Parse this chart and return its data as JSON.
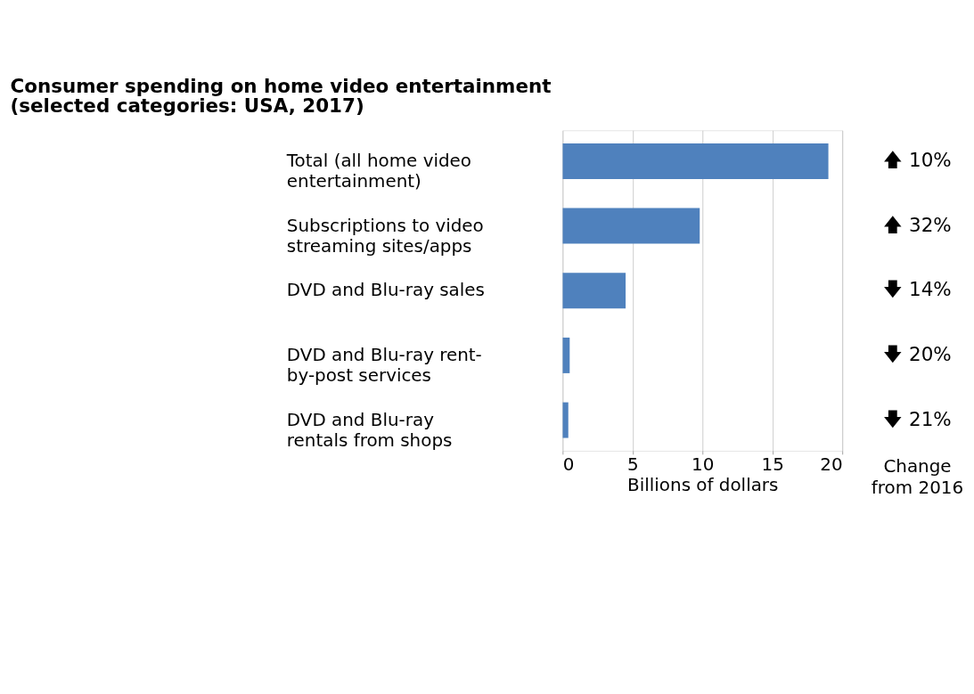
{
  "chart_data": {
    "type": "bar",
    "orientation": "horizontal",
    "title": [
      "Consumer spending on home video entertainment",
      "(selected categories: USA, 2017)"
    ],
    "categories": [
      "Total (all home video entertainment)",
      "Subscriptions to video streaming sites/apps",
      "DVD and Blu-ray sales",
      "DVD and Blu-ray rent-by-post services",
      "DVD and Blu-ray rentals from shops"
    ],
    "values": [
      19.0,
      9.8,
      4.5,
      0.5,
      0.4
    ],
    "color": "#4f81bd",
    "xlim": [
      0,
      20
    ],
    "xticks": [
      0,
      5,
      10,
      15,
      20
    ],
    "xlabel": "Billions of dollars",
    "grid": "x",
    "annotations": [
      "🡅 10%",
      "🡅 32%",
      "🡇 14%",
      "🡇 20%",
      "🡇 21%",
      "Change from 2016"
    ]
  }
}
